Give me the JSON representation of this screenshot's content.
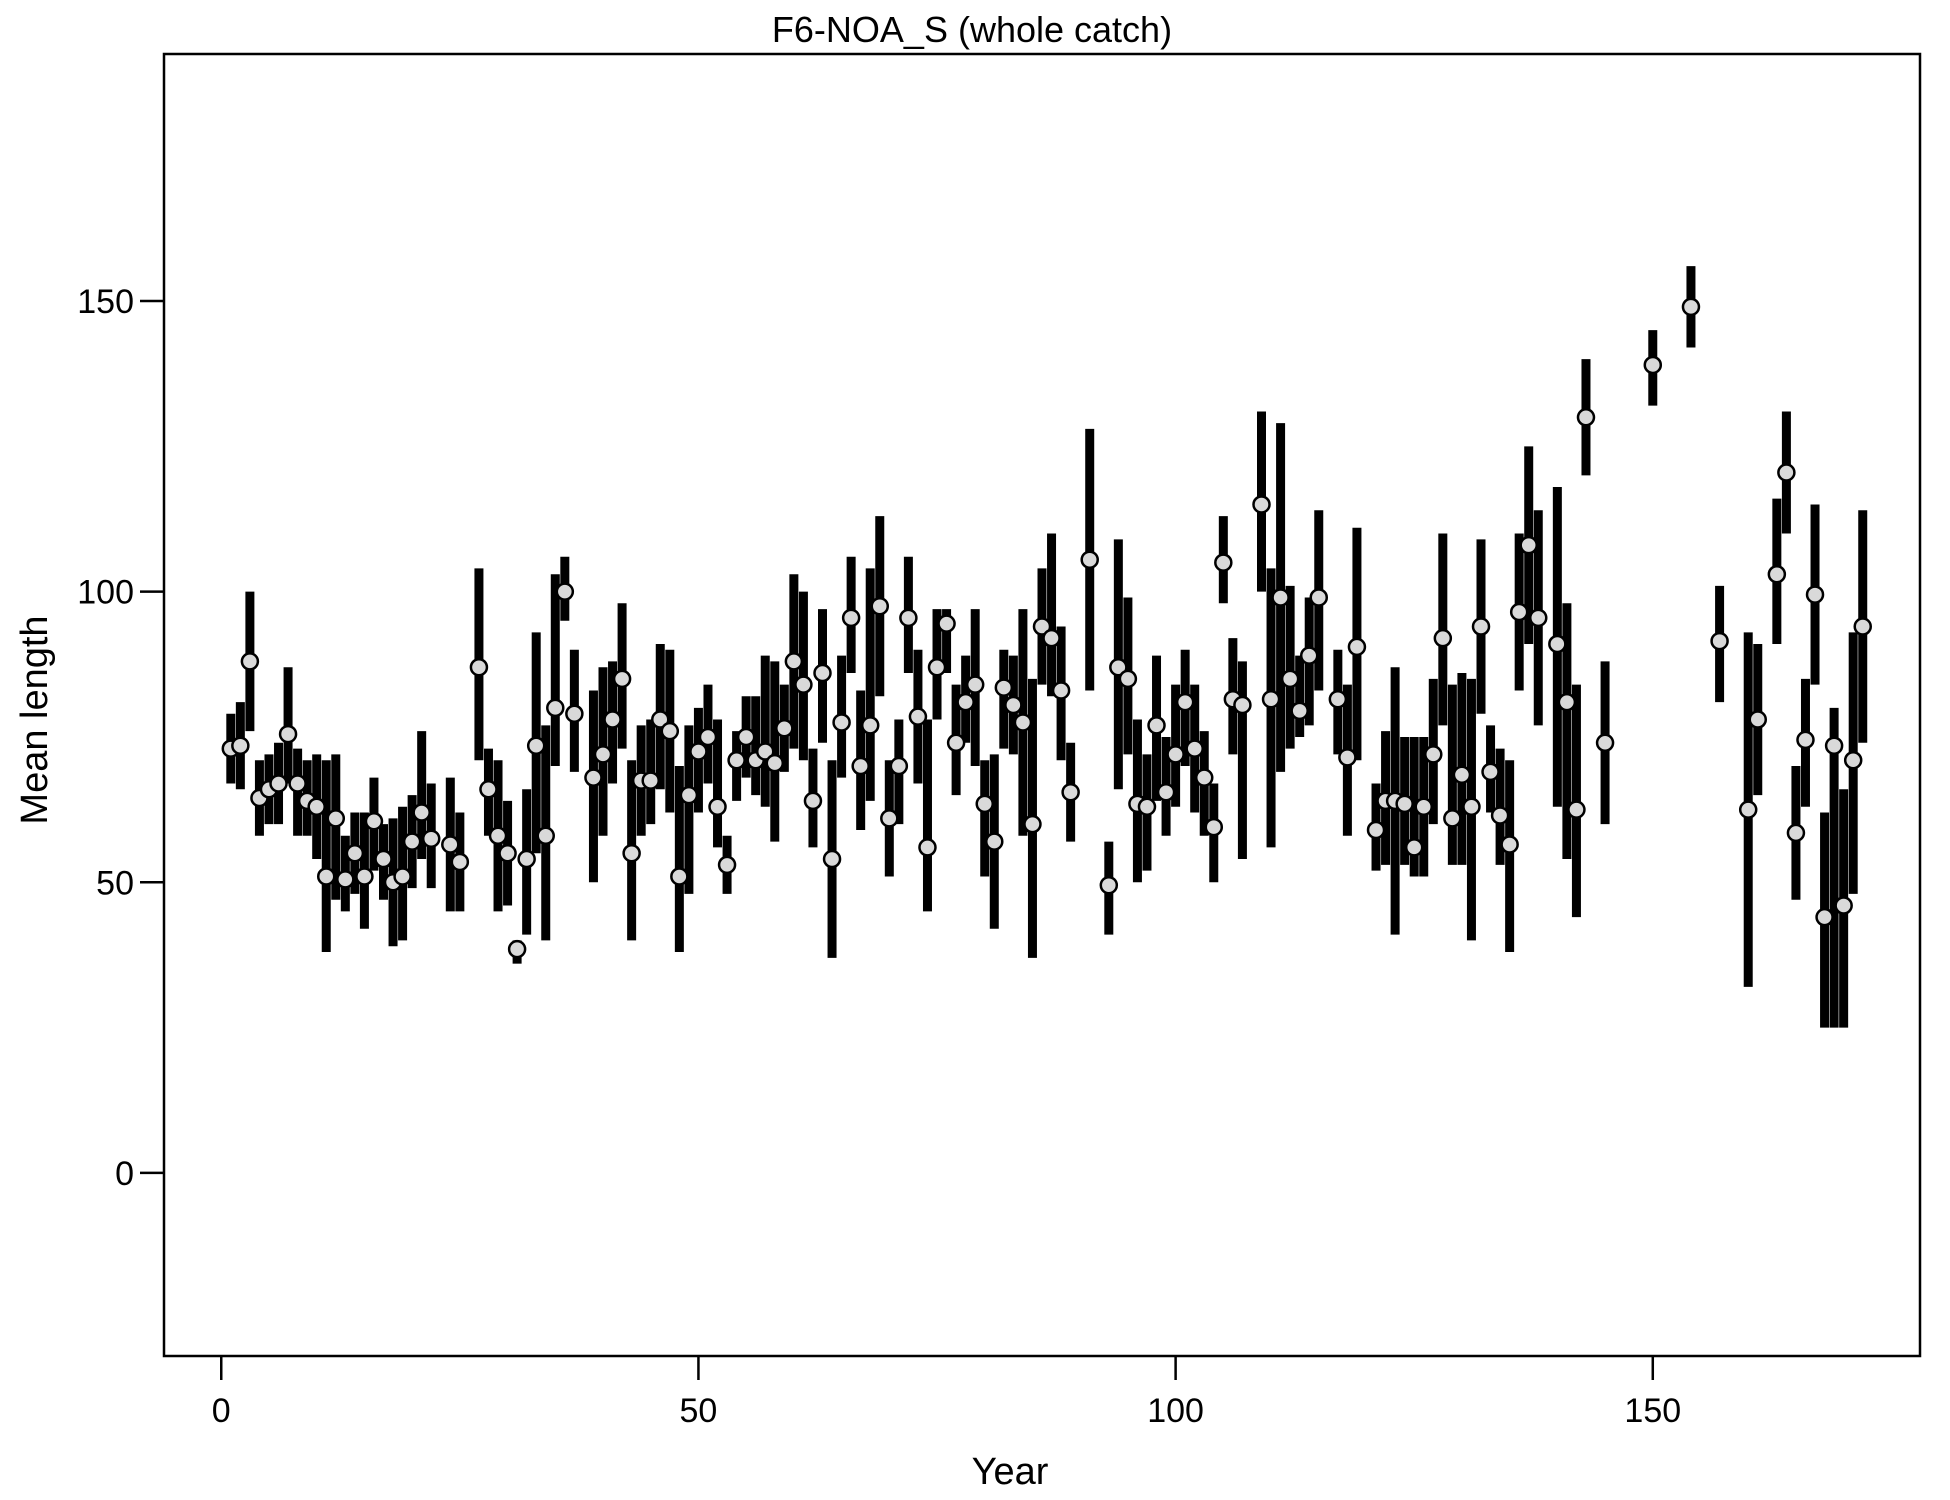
{
  "chart_data": {
    "type": "scatter",
    "title": "F6-NOA_S (whole catch)",
    "xlabel": "Year",
    "ylabel": "Mean length",
    "xlim": [
      -6,
      178
    ],
    "ylim": [
      -31.5,
      192.5
    ],
    "xticks": [
      0,
      50,
      100,
      150
    ],
    "yticks": [
      0,
      50,
      100,
      150
    ],
    "grid": false,
    "colors": {
      "interval": "#000000",
      "point_fill": "#d9d9d9",
      "point_stroke": "#000000",
      "frame": "#000000"
    },
    "series": [
      {
        "x": [
          1,
          2,
          3,
          4,
          5,
          6,
          7,
          8,
          9,
          10,
          11,
          12,
          13,
          14,
          15,
          16,
          17,
          18,
          19,
          20,
          21,
          22,
          24,
          25,
          27,
          28,
          29,
          30,
          31,
          32,
          33,
          34,
          35,
          36,
          37,
          39,
          40,
          41,
          42,
          43,
          44,
          45,
          46,
          47,
          48,
          49,
          50,
          51,
          52,
          53,
          54,
          55,
          56,
          57,
          58,
          59,
          60,
          61,
          62,
          63,
          64,
          65,
          66,
          67,
          68,
          69,
          70,
          71,
          72,
          73,
          74,
          75,
          76,
          77,
          78,
          79,
          80,
          81,
          82,
          83,
          84,
          85,
          86,
          87,
          88,
          89,
          91,
          93,
          94,
          95,
          96,
          97,
          98,
          99,
          100,
          101,
          102,
          103,
          104,
          105,
          106,
          107,
          109,
          110,
          111,
          112,
          113,
          114,
          115,
          117,
          118,
          119,
          121,
          122,
          123,
          124,
          125,
          126,
          127,
          128,
          129,
          130,
          131,
          132,
          133,
          134,
          135,
          136,
          137,
          138,
          140,
          141,
          142,
          143,
          145,
          150,
          154,
          157,
          160,
          161,
          163,
          164,
          165,
          166,
          167,
          168,
          169,
          170,
          171,
          172
        ],
        "y": [
          73,
          73.5,
          88,
          64.5,
          66,
          67,
          75.5,
          67,
          64,
          63,
          51,
          61,
          50.5,
          55,
          51,
          60.5,
          54,
          50,
          51,
          57,
          62,
          57.5,
          56.5,
          53.5,
          87,
          66,
          58,
          55,
          38.5,
          54,
          73.5,
          58,
          80,
          100,
          79,
          68,
          72,
          78,
          85,
          55,
          67.5,
          67.5,
          78,
          76,
          51,
          65,
          72.5,
          75,
          63,
          53,
          71,
          75,
          71,
          72.5,
          70.5,
          76.5,
          88,
          84,
          64,
          86,
          54,
          77.5,
          95.5,
          70,
          77,
          97.5,
          61,
          70,
          95.5,
          78.5,
          56,
          87,
          94.5,
          74,
          81,
          84,
          63.5,
          57,
          83.5,
          80.5,
          77.5,
          60,
          94,
          92,
          83,
          65.5,
          105.5,
          49.5,
          87,
          85,
          63.5,
          63,
          77,
          65.5,
          72,
          81,
          73,
          68,
          59.5,
          105,
          81.5,
          80.5,
          115,
          81.5,
          99,
          85,
          79.5,
          89,
          99,
          81.5,
          71.5,
          90.5,
          59,
          64,
          64,
          63.5,
          56,
          63,
          72,
          92,
          61,
          68.5,
          63,
          94,
          69,
          61.5,
          56.5,
          96.5,
          108,
          95.5,
          91,
          81,
          62.5,
          130,
          74,
          139,
          149,
          91.5,
          62.5,
          78,
          103,
          120.5,
          58.5,
          74.5,
          99.5,
          44,
          73.5,
          46,
          71,
          94
        ],
        "low": [
          67,
          66,
          76,
          58,
          60,
          60,
          67,
          58,
          58,
          54,
          38,
          47,
          45,
          48,
          42,
          52,
          47,
          39,
          40,
          49,
          54,
          49,
          45,
          45,
          71,
          58,
          45,
          46,
          36,
          41,
          55,
          40,
          70,
          95,
          69,
          50,
          58,
          67,
          73,
          40,
          58,
          60,
          66,
          62,
          38,
          48,
          62,
          67,
          56,
          48,
          64,
          68,
          65,
          63,
          57,
          69,
          73,
          71,
          56,
          74,
          37,
          68,
          86,
          59,
          64,
          82,
          51,
          60,
          86,
          67,
          45,
          78,
          86,
          65,
          74,
          70,
          51,
          42,
          73,
          72,
          58,
          37,
          84,
          82,
          71,
          57,
          83,
          41,
          66,
          72,
          50,
          52,
          64,
          58,
          63,
          70,
          62,
          58,
          50,
          98,
          72,
          54,
          100,
          56,
          69,
          73,
          75,
          77,
          83,
          72,
          58,
          71,
          52,
          53,
          41,
          53,
          51,
          51,
          60,
          77,
          53,
          53,
          40,
          79,
          62,
          53,
          38,
          83,
          91,
          77,
          63,
          54,
          44,
          120,
          60,
          132,
          142,
          81,
          32,
          65,
          91,
          110,
          47,
          63,
          84,
          25,
          25,
          25,
          48,
          74
        ],
        "high": [
          79,
          81,
          100,
          71,
          72,
          74,
          87,
          73,
          71,
          72,
          71,
          72,
          58,
          62,
          62,
          68,
          60,
          61,
          63,
          65,
          76,
          67,
          68,
          62,
          104,
          73,
          71,
          64,
          40,
          66,
          93,
          77,
          103,
          106,
          90,
          83,
          87,
          88,
          98,
          71,
          77,
          78,
          91,
          90,
          70,
          77,
          80,
          84,
          78,
          58,
          76,
          82,
          82,
          89,
          88,
          84,
          103,
          100,
          73,
          97,
          71,
          89,
          106,
          83,
          104,
          113,
          71,
          78,
          106,
          90,
          78,
          97,
          97,
          84,
          89,
          97,
          71,
          72,
          90,
          89,
          97,
          85,
          104,
          110,
          94,
          74,
          128,
          57,
          109,
          99,
          78,
          72,
          89,
          75,
          84,
          90,
          84,
          76,
          67,
          113,
          92,
          88,
          131,
          104,
          129,
          101,
          89,
          99,
          114,
          90,
          84,
          111,
          67,
          76,
          87,
          75,
          75,
          75,
          85,
          110,
          84,
          86,
          85,
          109,
          77,
          73,
          71,
          110,
          125,
          114,
          118,
          98,
          84,
          140,
          88,
          145,
          156,
          101,
          93,
          91,
          116,
          131,
          70,
          85,
          115,
          62,
          80,
          66,
          93,
          114
        ]
      }
    ]
  }
}
